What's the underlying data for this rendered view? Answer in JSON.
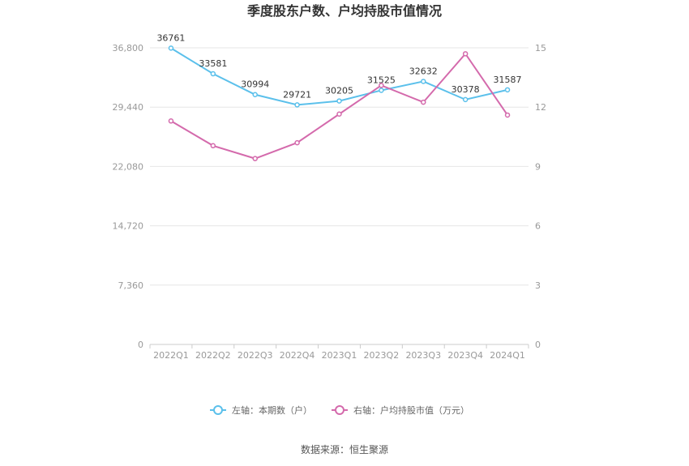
{
  "title": "季度股东户数、户均持股市值情况",
  "source": "数据来源：恒生聚源",
  "chart_data": {
    "type": "line",
    "categories": [
      "2022Q1",
      "2022Q2",
      "2022Q3",
      "2022Q4",
      "2023Q1",
      "2023Q2",
      "2023Q3",
      "2023Q4",
      "2024Q1"
    ],
    "y_left": {
      "ticks": [
        "0",
        "7,360",
        "14,720",
        "22,080",
        "29,440",
        "36,800"
      ],
      "ylim": [
        0,
        36800
      ]
    },
    "y_right": {
      "ticks": [
        "0",
        "3",
        "6",
        "9",
        "12",
        "15"
      ],
      "ylim": [
        0,
        15
      ]
    },
    "series": [
      {
        "name": "左轴：本期数（户）",
        "axis": "left",
        "color": "#5bc0eb",
        "values": [
          36761,
          33581,
          30994,
          29721,
          30205,
          31525,
          32632,
          30378,
          31587
        ],
        "labels": [
          "36761",
          "33581",
          "30994",
          "29721",
          "30205",
          "31525",
          "32632",
          "30378",
          "31587"
        ]
      },
      {
        "name": "右轴：户均持股市值（万元）",
        "axis": "right",
        "color": "#d46aac",
        "values": [
          11.3,
          10.05,
          9.4,
          10.2,
          11.65,
          13.1,
          12.25,
          14.7,
          11.6
        ]
      }
    ],
    "grid": true,
    "legend_position": "bottom"
  }
}
